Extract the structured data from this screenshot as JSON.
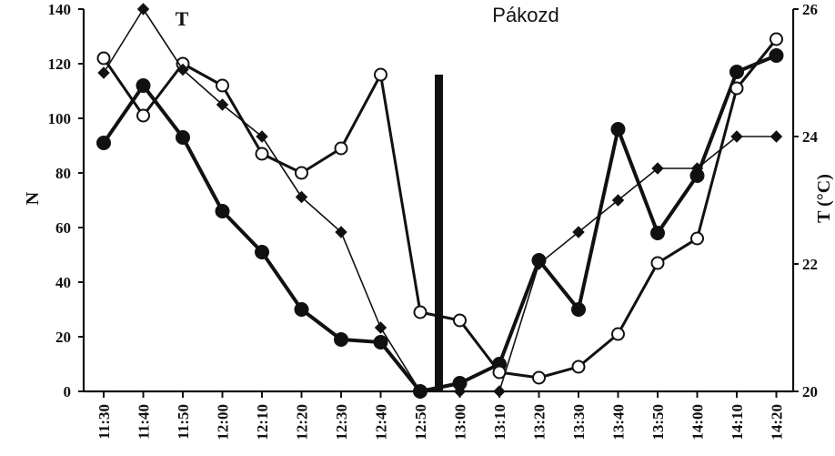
{
  "chart_data": {
    "type": "line",
    "title": "Pákozd",
    "ylabel_left": "N",
    "ylabel_right": "T (°C)",
    "series_label": "T",
    "categories": [
      "11:30",
      "11:40",
      "11:50",
      "12:00",
      "12:10",
      "12:20",
      "12:30",
      "12:40",
      "12:50",
      "13:00",
      "13:10",
      "13:20",
      "13:30",
      "13:40",
      "13:50",
      "14:00",
      "14:10",
      "14:20"
    ],
    "ylim_left": [
      0,
      140
    ],
    "yticks_left": [
      0,
      20,
      40,
      60,
      80,
      100,
      120,
      140
    ],
    "ylim_right": [
      20,
      26
    ],
    "yticks_right": [
      20,
      22,
      24,
      26
    ],
    "grid": false,
    "event_marker_category": "12:50",
    "series": [
      {
        "marker": "filled-circle",
        "axis": "left",
        "values": [
          91,
          112,
          93,
          66,
          51,
          30,
          19,
          18,
          0,
          3,
          10,
          48,
          30,
          96,
          58,
          79,
          117,
          123
        ]
      },
      {
        "marker": "open-circle",
        "axis": "left",
        "values": [
          122,
          101,
          120,
          112,
          87,
          80,
          89,
          116,
          29,
          26,
          7,
          5,
          9,
          21,
          47,
          56,
          111,
          129
        ]
      },
      {
        "name": "T",
        "marker": "diamond",
        "axis": "right",
        "values": [
          25.0,
          26.0,
          25.05,
          24.5,
          24.0,
          23.05,
          22.5,
          21.0,
          20.0,
          20.0,
          20.0,
          22.0,
          22.5,
          23.0,
          23.5,
          23.5,
          24.0,
          24.0
        ]
      }
    ]
  }
}
